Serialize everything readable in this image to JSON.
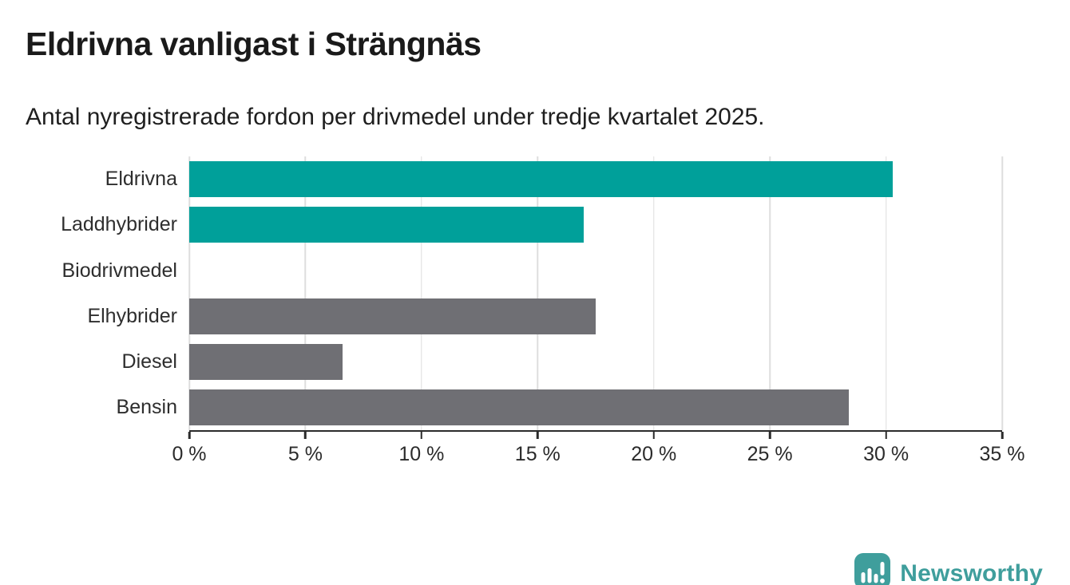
{
  "header": {
    "title": "Eldrivna vanligast i Strängnäs",
    "subtitle": "Antal nyregistrerade fordon per drivmedel under tredje kvartalet 2025."
  },
  "chart_data": {
    "type": "bar",
    "orientation": "horizontal",
    "title": "Eldrivna vanligast i Strängnäs",
    "subtitle": "Antal nyregistrerade fordon per drivmedel under tredje kvartalet 2025.",
    "categories": [
      "Eldrivna",
      "Laddhybrider",
      "Biodrivmedel",
      "Elhybrider",
      "Diesel",
      "Bensin"
    ],
    "values": [
      30.3,
      17,
      0,
      17.5,
      6.6,
      28.4
    ],
    "unit": "%",
    "bar_colors": [
      "#00a09a",
      "#00a09a",
      "#6f6f74",
      "#6f6f74",
      "#6f6f74",
      "#6f6f74"
    ],
    "xlim": [
      0,
      35
    ],
    "x_ticks": [
      0,
      5,
      10,
      15,
      20,
      25,
      30,
      35
    ],
    "x_tick_labels": [
      "0 %",
      "5 %",
      "10 %",
      "15 %",
      "20 %",
      "25 %",
      "30 %",
      "35 %"
    ],
    "xlabel": "",
    "ylabel": "",
    "grid": "vertical",
    "legend": "none"
  },
  "colors": {
    "teal": "#00a09a",
    "gray": "#6f6f74",
    "grid": "#dedede",
    "axis": "#2b2b2b",
    "logo_teal": "#3f9e9c"
  },
  "footer": {
    "brand": "Newsworthy"
  }
}
